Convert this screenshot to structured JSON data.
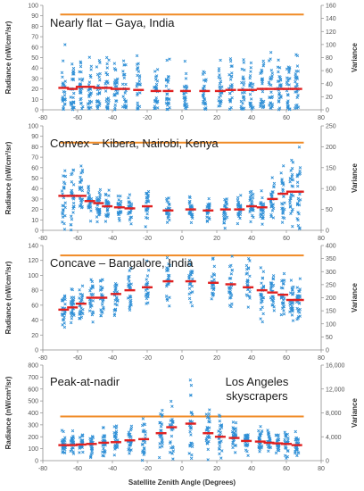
{
  "palette": {
    "scatter": "#2e8fd6",
    "mean": "#e02020",
    "variance": "#f08a24",
    "axis": "#8c8c8c"
  },
  "xlabel": "Satellite Zenith Angle (Degrees)",
  "chart_data": [
    {
      "type": "scatter",
      "title": "Nearly flat – Gaya, India",
      "ylabel": "Radiance (nW/cm²/sr)",
      "y2label": "Variance",
      "xlim": [
        -80,
        80
      ],
      "ylim": [
        0,
        100
      ],
      "y2lim": [
        0,
        160
      ],
      "xticks": [
        -80,
        -60,
        -40,
        -20,
        0,
        20,
        40,
        60,
        80
      ],
      "yticks": [
        0,
        10,
        20,
        30,
        40,
        50,
        60,
        70,
        80,
        90,
        100
      ],
      "y2ticks": [
        0,
        20,
        40,
        60,
        80,
        100,
        120,
        140,
        160
      ],
      "x": [
        -68,
        -63,
        -58,
        -53,
        -48,
        -43,
        -38,
        -33,
        -25,
        -15,
        -8,
        2,
        13,
        22,
        28,
        35,
        40,
        46,
        51,
        56,
        61,
        66
      ],
      "mean": [
        21,
        20,
        22,
        22,
        21,
        21,
        20,
        20,
        19,
        18,
        18,
        18,
        18,
        18,
        19,
        19,
        19,
        20,
        20,
        20,
        20,
        20
      ],
      "spread": [
        45,
        40,
        42,
        40,
        40,
        45,
        38,
        38,
        40,
        35,
        35,
        35,
        38,
        40,
        42,
        40,
        40,
        45,
        42,
        42,
        45,
        45
      ],
      "variance_level": 146
    },
    {
      "type": "scatter",
      "title": "Convex – Kibera, Nairobi, Kenya",
      "ylabel": "Radiance (nW/cm²/sr)",
      "y2label": "Variance",
      "xlim": [
        -80,
        80
      ],
      "ylim": [
        0,
        100
      ],
      "y2lim": [
        0,
        250
      ],
      "xticks": [
        -80,
        -60,
        -40,
        -20,
        0,
        20,
        40,
        60,
        80
      ],
      "yticks": [
        0,
        10,
        20,
        30,
        40,
        50,
        60,
        70,
        80,
        90,
        100
      ],
      "y2ticks": [
        0,
        50,
        100,
        150,
        200,
        250
      ],
      "x": [
        -68,
        -63,
        -58,
        -53,
        -48,
        -43,
        -36,
        -30,
        -20,
        -8,
        5,
        15,
        25,
        33,
        40,
        46,
        52,
        58,
        63,
        67
      ],
      "mean": [
        33,
        33,
        33,
        28,
        26,
        23,
        22,
        21,
        23,
        19,
        20,
        19,
        20,
        20,
        23,
        22,
        30,
        35,
        37,
        37
      ],
      "spread": [
        40,
        42,
        40,
        25,
        22,
        20,
        18,
        18,
        20,
        15,
        15,
        18,
        18,
        20,
        20,
        20,
        35,
        45,
        50,
        52
      ],
      "variance_level": 210
    },
    {
      "type": "scatter",
      "title": "Concave – Bangalore, India",
      "ylabel": "Radiance (nW/cm²/sr)",
      "y2label": "Variance",
      "xlim": [
        -80,
        80
      ],
      "ylim": [
        0,
        140
      ],
      "y2lim": [
        0,
        400
      ],
      "xticks": [
        -80,
        -60,
        -40,
        -20,
        0,
        20,
        40,
        60,
        80
      ],
      "yticks": [
        0,
        20,
        40,
        60,
        80,
        100,
        120,
        140
      ],
      "y2ticks": [
        0,
        50,
        100,
        150,
        200,
        250,
        300,
        350,
        400
      ],
      "x": [
        -68,
        -63,
        -58,
        -52,
        -46,
        -38,
        -30,
        -20,
        -8,
        5,
        18,
        28,
        38,
        46,
        52,
        58,
        63,
        67
      ],
      "mean": [
        54,
        57,
        62,
        70,
        70,
        75,
        80,
        84,
        92,
        92,
        90,
        88,
        84,
        80,
        77,
        74,
        67,
        67
      ],
      "spread": [
        30,
        32,
        35,
        40,
        42,
        40,
        40,
        40,
        40,
        40,
        42,
        40,
        45,
        45,
        40,
        38,
        38,
        38
      ],
      "variance_level": 362
    },
    {
      "type": "scatter",
      "title": "Peak-at-nadir",
      "annotation": "Los Angeles skyscrapers",
      "ylabel": "Radiance (nW/cm²/sr)",
      "y2label": "Variance",
      "xlim": [
        -80,
        80
      ],
      "ylim": [
        0,
        800
      ],
      "y2lim": [
        0,
        16000
      ],
      "xticks": [
        -80,
        -60,
        -40,
        -20,
        0,
        20,
        40,
        60,
        80
      ],
      "yticks": [
        0,
        100,
        200,
        300,
        400,
        500,
        600,
        700,
        800
      ],
      "y2ticks": [
        0,
        4000,
        8000,
        12000,
        16000
      ],
      "y2ticklabels": [
        "0",
        "4,000",
        "8,000",
        "12,000",
        "16,000"
      ],
      "x": [
        -68,
        -63,
        -58,
        -52,
        -45,
        -38,
        -30,
        -22,
        -12,
        -6,
        5,
        15,
        22,
        30,
        37,
        45,
        50,
        55,
        60,
        66
      ],
      "mean": [
        130,
        130,
        135,
        140,
        150,
        155,
        170,
        180,
        230,
        280,
        310,
        230,
        200,
        190,
        165,
        160,
        150,
        145,
        140,
        130
      ],
      "spread": [
        130,
        130,
        130,
        140,
        150,
        160,
        180,
        220,
        300,
        400,
        420,
        300,
        220,
        190,
        160,
        150,
        150,
        145,
        140,
        130
      ],
      "variance_level": 7400
    }
  ]
}
